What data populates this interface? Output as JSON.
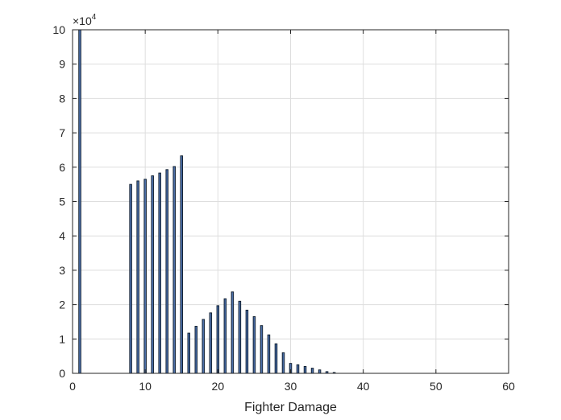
{
  "chart_data": {
    "type": "bar",
    "title": "",
    "xlabel": "Fighter Damage",
    "ylabel": "",
    "xlim": [
      0,
      60
    ],
    "ylim": [
      0,
      100000
    ],
    "xticks": [
      0,
      10,
      20,
      30,
      40,
      50,
      60
    ],
    "xtick_labels": [
      "0",
      "10",
      "20",
      "30",
      "40",
      "50",
      "60"
    ],
    "yticks": [
      0,
      10000,
      20000,
      30000,
      40000,
      50000,
      60000,
      70000,
      80000,
      90000,
      100000
    ],
    "ytick_labels": [
      "0",
      "1",
      "2",
      "3",
      "4",
      "5",
      "6",
      "7",
      "8",
      "9",
      "10"
    ],
    "y_exponent": {
      "base": "×10",
      "power": "4"
    },
    "grid": true,
    "colors": {
      "bar_fill": "#4b6ea8",
      "bar_edge": "#0d1b2a",
      "grid": "#dedede",
      "axis": "#262626"
    },
    "x": [
      1,
      8,
      9,
      10,
      11,
      12,
      13,
      14,
      15,
      16,
      17,
      18,
      19,
      20,
      21,
      22,
      23,
      24,
      25,
      26,
      27,
      28,
      29,
      30,
      31,
      32,
      33,
      34,
      35,
      36
    ],
    "values": [
      100000,
      55000,
      56000,
      56500,
      57500,
      58300,
      59300,
      60200,
      63300,
      11700,
      13700,
      15700,
      17600,
      19700,
      21700,
      23700,
      21000,
      18400,
      16500,
      13900,
      11200,
      8600,
      6000,
      2900,
      2500,
      2000,
      1500,
      1000,
      500,
      250
    ]
  }
}
